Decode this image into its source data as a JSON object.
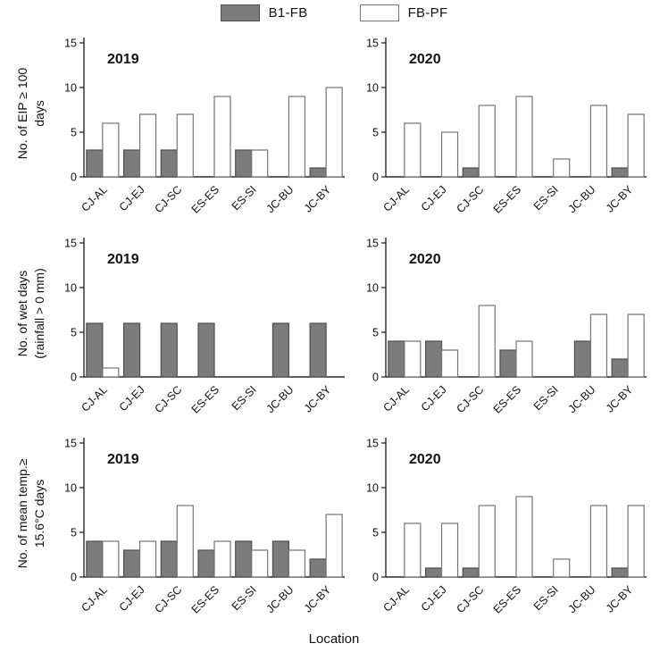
{
  "figure": {
    "xlabel": "Location",
    "categories": [
      "CJ-AL",
      "CJ-EJ",
      "CJ-SC",
      "ES-ES",
      "ES-SI",
      "JC-BU",
      "JC-BY"
    ],
    "legend": [
      {
        "label": "B1-FB",
        "fill": "#7c7c7c",
        "stroke": "#4f4f4f"
      },
      {
        "label": "FB-PF",
        "fill": "#ffffff",
        "stroke": "#757575"
      }
    ],
    "axis_color": "#2a2a2a",
    "rows": [
      {
        "line1": "No. of EIP ≥ 100",
        "line2": "days"
      },
      {
        "line1": "No. of wet days",
        "line2": "(rainfall > 0 mm)"
      },
      {
        "line1": "No. of mean temp.≥",
        "line2": "15.6°C days"
      }
    ]
  },
  "chart_data": [
    {
      "type": "bar",
      "id": "eip-2019",
      "title": "2019",
      "row_metric": "No. of EIP ≥ 100 days",
      "categories": [
        "CJ-AL",
        "CJ-EJ",
        "CJ-SC",
        "ES-ES",
        "ES-SI",
        "JC-BU",
        "JC-BY"
      ],
      "series": [
        {
          "name": "B1-FB",
          "values": [
            3,
            3,
            3,
            0,
            3,
            0,
            1
          ]
        },
        {
          "name": "FB-PF",
          "values": [
            6,
            7,
            7,
            9,
            3,
            9,
            10
          ]
        }
      ],
      "ylim": [
        0,
        15
      ],
      "yticks": [
        0,
        5,
        10,
        15
      ],
      "grid": false
    },
    {
      "type": "bar",
      "id": "eip-2020",
      "title": "2020",
      "row_metric": "No. of EIP ≥ 100 days",
      "categories": [
        "CJ-AL",
        "CJ-EJ",
        "CJ-SC",
        "ES-ES",
        "ES-SI",
        "JC-BU",
        "JC-BY"
      ],
      "series": [
        {
          "name": "B1-FB",
          "values": [
            0,
            0,
            1,
            0,
            0,
            0,
            1
          ]
        },
        {
          "name": "FB-PF",
          "values": [
            6,
            5,
            8,
            9,
            2,
            8,
            7
          ]
        }
      ],
      "ylim": [
        0,
        15
      ],
      "yticks": [
        0,
        5,
        10,
        15
      ],
      "grid": false
    },
    {
      "type": "bar",
      "id": "wetdays-2019",
      "title": "2019",
      "row_metric": "No. of wet days (rainfall > 0 mm)",
      "categories": [
        "CJ-AL",
        "CJ-EJ",
        "CJ-SC",
        "ES-ES",
        "ES-SI",
        "JC-BU",
        "JC-BY"
      ],
      "series": [
        {
          "name": "B1-FB",
          "values": [
            6,
            6,
            6,
            6,
            0,
            6,
            6
          ]
        },
        {
          "name": "FB-PF",
          "values": [
            1,
            0,
            0,
            0,
            0,
            0,
            0
          ]
        }
      ],
      "ylim": [
        0,
        15
      ],
      "yticks": [
        0,
        5,
        10,
        15
      ],
      "grid": false
    },
    {
      "type": "bar",
      "id": "wetdays-2020",
      "title": "2020",
      "row_metric": "No. of wet days (rainfall > 0 mm)",
      "categories": [
        "CJ-AL",
        "CJ-EJ",
        "CJ-SC",
        "ES-ES",
        "ES-SI",
        "JC-BU",
        "JC-BY"
      ],
      "series": [
        {
          "name": "B1-FB",
          "values": [
            4,
            4,
            0,
            3,
            0,
            4,
            2
          ]
        },
        {
          "name": "FB-PF",
          "values": [
            4,
            3,
            8,
            4,
            0,
            7,
            7
          ]
        }
      ],
      "ylim": [
        0,
        15
      ],
      "yticks": [
        0,
        5,
        10,
        15
      ],
      "grid": false
    },
    {
      "type": "bar",
      "id": "meantemp-2019",
      "title": "2019",
      "row_metric": "No. of mean temp.≥ 15.6°C days",
      "categories": [
        "CJ-AL",
        "CJ-EJ",
        "CJ-SC",
        "ES-ES",
        "ES-SI",
        "JC-BU",
        "JC-BY"
      ],
      "series": [
        {
          "name": "B1-FB",
          "values": [
            4,
            3,
            4,
            3,
            4,
            4,
            2
          ]
        },
        {
          "name": "FB-PF",
          "values": [
            4,
            4,
            8,
            4,
            3,
            3,
            7
          ]
        }
      ],
      "ylim": [
        0,
        15
      ],
      "yticks": [
        0,
        5,
        10,
        15
      ],
      "grid": false
    },
    {
      "type": "bar",
      "id": "meantemp-2020",
      "title": "2020",
      "row_metric": "No. of mean temp.≥ 15.6°C days",
      "categories": [
        "CJ-AL",
        "CJ-EJ",
        "CJ-SC",
        "ES-ES",
        "ES-SI",
        "JC-BU",
        "JC-BY"
      ],
      "series": [
        {
          "name": "B1-FB",
          "values": [
            0,
            1,
            1,
            0,
            0,
            0,
            1
          ]
        },
        {
          "name": "FB-PF",
          "values": [
            6,
            6,
            8,
            9,
            2,
            8,
            8
          ]
        }
      ],
      "ylim": [
        0,
        15
      ],
      "yticks": [
        0,
        5,
        10,
        15
      ],
      "grid": false
    }
  ]
}
